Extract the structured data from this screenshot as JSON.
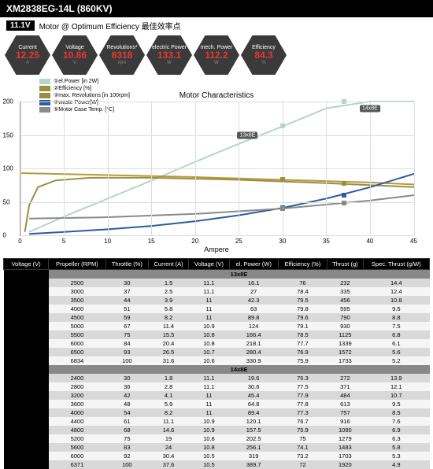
{
  "title": "XM2838EG-14L (860KV)",
  "voltage_badge": "11.1V",
  "subheader_text": "Motor @ Optimum Efficiency  最佳效率点",
  "hex": [
    {
      "label": "Current",
      "value": "12.25",
      "unit": "A"
    },
    {
      "label": "Voltage",
      "value": "10.86",
      "unit": "V"
    },
    {
      "label": "Revolutions*",
      "value": "8318",
      "unit": "rpm"
    },
    {
      "label": "electric Power",
      "value": "133.1",
      "unit": "W"
    },
    {
      "label": "mech. Power",
      "value": "112.2",
      "unit": "W"
    },
    {
      "label": "Efficiency",
      "value": "84.3",
      "unit": "%"
    }
  ],
  "legend": [
    {
      "color": "#b7d4c9",
      "label": "①el.Power [in 2W]"
    },
    {
      "color": "#9a8f3e",
      "label": "②Efficiency [%]"
    },
    {
      "color": "#9a8f3e",
      "label": "③max. Revolutions [in 100rpm]"
    },
    {
      "color": "#2e5aa0",
      "label": "④waste Power[W]"
    },
    {
      "color": "#8a8a8a",
      "label": "⑤Motor Case Temp. [°C]"
    }
  ],
  "chart": {
    "title": "Motor Characteristics",
    "xlim": [
      0,
      45
    ],
    "ylim": [
      0,
      200
    ],
    "xticks": [
      0,
      5,
      10,
      15,
      20,
      25,
      30,
      35,
      40,
      45
    ],
    "yticks": [
      0,
      50,
      100,
      150,
      200
    ],
    "xlabel": "Ampere",
    "series": {
      "power": {
        "color": "#b7d4c9",
        "width": 2,
        "pts": [
          [
            1,
            5
          ],
          [
            5,
            28
          ],
          [
            10,
            55
          ],
          [
            15,
            82
          ],
          [
            20,
            110
          ],
          [
            25,
            137
          ],
          [
            30,
            163
          ],
          [
            35,
            190
          ],
          [
            40,
            218
          ],
          [
            45,
            245
          ]
        ]
      },
      "eff": {
        "color": "#9a8f3e",
        "width": 2,
        "pts": [
          [
            0.5,
            5
          ],
          [
            1,
            45
          ],
          [
            2,
            72
          ],
          [
            4,
            82
          ],
          [
            8,
            86
          ],
          [
            15,
            86
          ],
          [
            25,
            83
          ],
          [
            35,
            78
          ],
          [
            45,
            72
          ]
        ]
      },
      "rev": {
        "color": "#b39a3e",
        "width": 2,
        "pts": [
          [
            0,
            93
          ],
          [
            10,
            90
          ],
          [
            20,
            87
          ],
          [
            30,
            83
          ],
          [
            40,
            79
          ],
          [
            45,
            76
          ]
        ]
      },
      "waste": {
        "color": "#2e5aa0",
        "width": 2,
        "pts": [
          [
            1,
            2
          ],
          [
            5,
            5
          ],
          [
            10,
            9
          ],
          [
            15,
            14
          ],
          [
            20,
            21
          ],
          [
            25,
            30
          ],
          [
            30,
            41
          ],
          [
            35,
            55
          ],
          [
            40,
            72
          ],
          [
            45,
            92
          ]
        ]
      },
      "temp": {
        "color": "#8a8a8a",
        "width": 2,
        "pts": [
          [
            1,
            25
          ],
          [
            10,
            27
          ],
          [
            20,
            32
          ],
          [
            30,
            40
          ],
          [
            40,
            52
          ],
          [
            45,
            60
          ]
        ]
      }
    },
    "markers": [
      {
        "x": 30,
        "y": 163,
        "color": "#b7d4c9",
        "label": "13x8E",
        "lx": 26,
        "ly": 150
      },
      {
        "x": 37,
        "y": 200,
        "color": "#b7d4c9",
        "label": "14x8E",
        "lx": 40,
        "ly": 190
      },
      {
        "x": 30,
        "y": 83,
        "color": "#9a8f3e"
      },
      {
        "x": 37,
        "y": 78,
        "color": "#9a8f3e"
      },
      {
        "x": 30,
        "y": 41,
        "color": "#2e5aa0"
      },
      {
        "x": 37,
        "y": 60,
        "color": "#2e5aa0"
      },
      {
        "x": 30,
        "y": 40,
        "color": "#8a8a8a"
      },
      {
        "x": 37,
        "y": 48,
        "color": "#8a8a8a"
      }
    ]
  },
  "table": {
    "volt_label": "11.1V\n(3S LIPO)",
    "headers": [
      "Voltage (V)",
      "Propeller (RPM)",
      "Throttle (%)",
      "Current (A)",
      "Voltage (V)",
      "el. Power (W)",
      "Efficiency (%)",
      "Thrust (g)",
      "Spec. Thrust (g/W)"
    ],
    "sections": [
      {
        "name": "13x8E",
        "rows": [
          [
            "2500",
            "30",
            "1.5",
            "11.1",
            "16.1",
            "76",
            "232",
            "14.4"
          ],
          [
            "3000",
            "37",
            "2.5",
            "11.1",
            "27",
            "78.4",
            "335",
            "12.4"
          ],
          [
            "3500",
            "44",
            "3.9",
            "11",
            "42.3",
            "79.5",
            "456",
            "10.8"
          ],
          [
            "4000",
            "51",
            "5.8",
            "11",
            "63",
            "79.8",
            "595",
            "9.5"
          ],
          [
            "4500",
            "59",
            "8.2",
            "11",
            "89.8",
            "79.6",
            "790",
            "8.8"
          ],
          [
            "5000",
            "67",
            "11.4",
            "10.9",
            "124",
            "79.1",
            "930",
            "7.5"
          ],
          [
            "5500",
            "75",
            "15.5",
            "10.8",
            "166.4",
            "78.5",
            "1125",
            "6.8"
          ],
          [
            "6000",
            "84",
            "20.4",
            "10.8",
            "218.1",
            "77.7",
            "1339",
            "6.1"
          ],
          [
            "6500",
            "93",
            "26.5",
            "10.7",
            "280.4",
            "76.9",
            "1572",
            "5.6"
          ],
          [
            "6834",
            "100",
            "31.6",
            "10.6",
            "330.9",
            "75.9",
            "1733",
            "5.2"
          ]
        ]
      },
      {
        "name": "14x8E",
        "rows": [
          [
            "2400",
            "30",
            "1.8",
            "11.1",
            "19.6",
            "76.3",
            "272",
            "13.9"
          ],
          [
            "2800",
            "36",
            "2.8",
            "11.1",
            "30.6",
            "77.5",
            "371",
            "12.1"
          ],
          [
            "3200",
            "42",
            "4.1",
            "11",
            "45.4",
            "77.9",
            "484",
            "10.7"
          ],
          [
            "3600",
            "48",
            "5.9",
            "11",
            "64.8",
            "77.8",
            "613",
            "9.5"
          ],
          [
            "4000",
            "54",
            "8.2",
            "11",
            "89.4",
            "77.3",
            "757",
            "8.5"
          ],
          [
            "4400",
            "61",
            "11.1",
            "10.9",
            "120.1",
            "76.7",
            "916",
            "7.6"
          ],
          [
            "4800",
            "68",
            "14.6",
            "10.9",
            "157.5",
            "75.9",
            "1090",
            "6.9"
          ],
          [
            "5200",
            "75",
            "19",
            "10.8",
            "202.5",
            "75",
            "1279",
            "6.3"
          ],
          [
            "5600",
            "83",
            "24",
            "10.8",
            "256.1",
            "74.1",
            "1483",
            "5.8"
          ],
          [
            "6000",
            "92",
            "30.4",
            "10.5",
            "319",
            "73.2",
            "1703",
            "5.3"
          ],
          [
            "6371",
            "100",
            "37.6",
            "10.5",
            "389.7",
            "72",
            "1920",
            "4.9"
          ]
        ]
      }
    ]
  }
}
